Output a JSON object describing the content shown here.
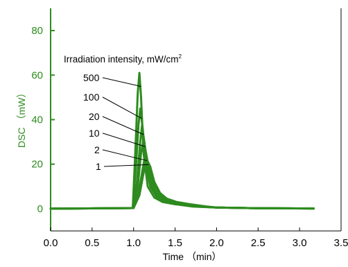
{
  "chart_data": {
    "type": "line",
    "xlabel": "Time （min）",
    "ylabel": "DSC （mW）",
    "xlim": [
      0,
      3.5
    ],
    "ylim": [
      -10,
      90
    ],
    "xticks": [
      "0.0",
      "0.5",
      "1.0",
      "1.5",
      "2.0",
      "2.5",
      "3.0",
      "3.5"
    ],
    "yticks": [
      "0",
      "20",
      "40",
      "60",
      "80"
    ],
    "grid": false,
    "legend_title": "Irradiation intensity, mW/cm",
    "legend_title_sup": "2",
    "series": [
      {
        "name": "500",
        "peak_time": 1.07,
        "peak": 61,
        "onset": 0.99,
        "x": [
          0,
          0.99,
          1.02,
          1.05,
          1.07,
          1.09,
          1.12,
          1.17,
          1.25,
          1.35,
          1.5,
          1.7,
          2.0,
          2.5,
          3.17
        ],
        "y": [
          0,
          0.3,
          25,
          52,
          61,
          50,
          25,
          10,
          5,
          3,
          2,
          1,
          0.5,
          0.2,
          0.1
        ]
      },
      {
        "name": "100",
        "peak_time": 1.08,
        "peak": 45,
        "onset": 0.99,
        "x": [
          0,
          0.99,
          1.03,
          1.06,
          1.08,
          1.11,
          1.15,
          1.2,
          1.28,
          1.4,
          1.55,
          1.75,
          2.0,
          2.5,
          3.17
        ],
        "y": [
          0,
          0.3,
          20,
          38,
          45,
          36,
          20,
          10,
          5,
          3,
          2,
          1,
          0.5,
          0.2,
          0.1
        ]
      },
      {
        "name": "20",
        "peak_time": 1.1,
        "peak": 37,
        "onset": 1.0,
        "x": [
          0,
          1.0,
          1.04,
          1.08,
          1.1,
          1.13,
          1.17,
          1.23,
          1.3,
          1.42,
          1.58,
          1.8,
          2.0,
          2.5,
          3.17
        ],
        "y": [
          0,
          0.3,
          12,
          30,
          37,
          30,
          18,
          9,
          5,
          3,
          2,
          1,
          0.5,
          0.2,
          0.1
        ]
      },
      {
        "name": "10",
        "peak_time": 1.12,
        "peak": 31,
        "onset": 1.0,
        "x": [
          0,
          1.0,
          1.05,
          1.09,
          1.12,
          1.15,
          1.2,
          1.26,
          1.33,
          1.45,
          1.6,
          1.8,
          2.0,
          2.5,
          3.17
        ],
        "y": [
          0,
          0.3,
          10,
          25,
          31,
          25,
          15,
          8,
          5,
          3,
          2,
          1,
          0.5,
          0.2,
          0.1
        ]
      },
      {
        "name": "2",
        "peak_time": 1.14,
        "peak": 24,
        "onset": 1.0,
        "x": [
          0,
          1.0,
          1.06,
          1.11,
          1.14,
          1.18,
          1.23,
          1.3,
          1.38,
          1.5,
          1.65,
          1.85,
          2.0,
          2.5,
          3.17
        ],
        "y": [
          0,
          0.3,
          7,
          18,
          24,
          20,
          13,
          7,
          4.5,
          3,
          2,
          1,
          0.5,
          0.2,
          0.1
        ]
      },
      {
        "name": "1",
        "peak_time": 1.16,
        "peak": 22,
        "onset": 1.0,
        "x": [
          0,
          1.0,
          1.07,
          1.12,
          1.16,
          1.2,
          1.25,
          1.32,
          1.4,
          1.52,
          1.68,
          1.88,
          2.0,
          2.5,
          3.17
        ],
        "y": [
          0,
          0.3,
          6,
          16,
          22,
          19,
          12,
          7,
          4.5,
          3,
          2,
          1,
          0.5,
          0.2,
          0.1
        ]
      }
    ],
    "line_color": "#2e8b1f",
    "axis_color": "#2e8b1f"
  }
}
